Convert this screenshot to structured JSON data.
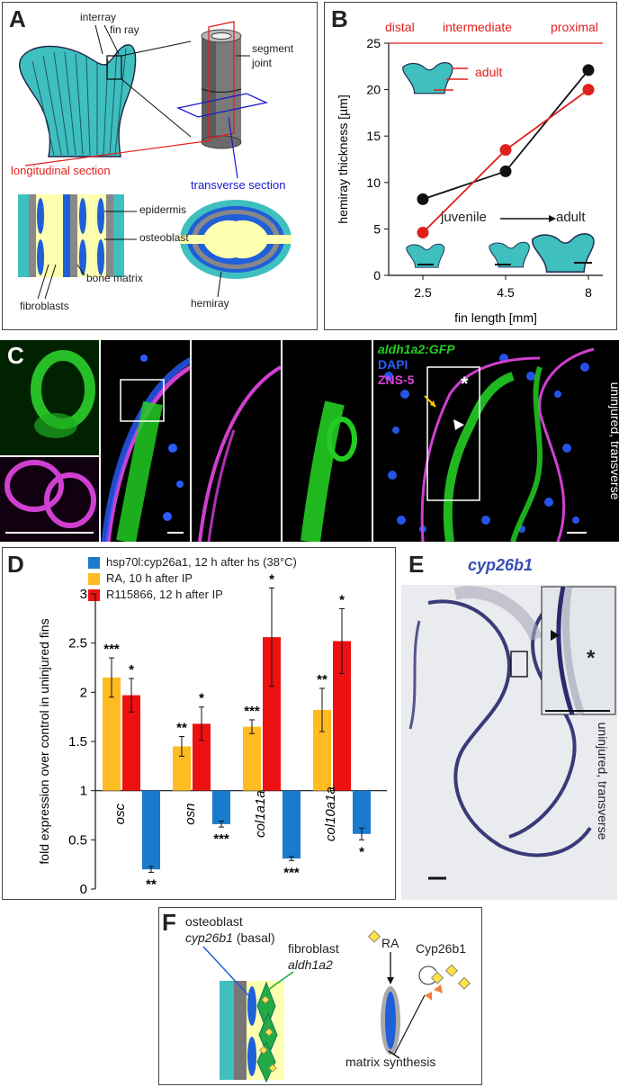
{
  "panelA": {
    "letter": "A",
    "interray": "interray",
    "fin_ray": "fin ray",
    "segment_joint": "segment\njoint",
    "longitudinal_section": "longitudinal section",
    "transverse_section": "transverse section",
    "epidermis": "epidermis",
    "osteoblast": "osteoblast",
    "bone_matrix": "bone matrix",
    "fibroblasts": "fibroblasts",
    "hemiray": "hemiray",
    "colors": {
      "fin": "#3fbfbf",
      "red": "#e0201c",
      "blue": "#1a1ad0",
      "matrix": "#ffffb0",
      "osteo": "#1f5fd8",
      "grey": "#888888"
    }
  },
  "panelB": {
    "letter": "B",
    "top_labels": [
      "distal",
      "intermediate",
      "proximal"
    ],
    "adult": "adult",
    "juvenile": "juvenile",
    "adult2": "adult",
    "chart_data": {
      "type": "line",
      "title": "",
      "xlabel": "fin length [mm]",
      "ylabel": "hemiray thickness [µm]",
      "categories": [
        "2.5",
        "4.5",
        "8"
      ],
      "ylim": [
        0,
        25
      ],
      "yticks": [
        0,
        5,
        10,
        15,
        20,
        25
      ],
      "series": [
        {
          "name": "",
          "color": "#111111",
          "values": [
            8.2,
            11.2,
            22.1
          ]
        },
        {
          "name": "",
          "color": "#e0201c",
          "values": [
            4.6,
            13.5,
            20.0
          ]
        }
      ]
    }
  },
  "panelC": {
    "letter": "C",
    "legend": [
      "aldh1a2:GFP",
      "DAPI",
      "ZNS-5"
    ],
    "legend_colors": [
      "#22cc22",
      "#2a5cff",
      "#e040e0"
    ],
    "side": "uninjured, transverse",
    "asterisk": "*"
  },
  "panelD": {
    "letter": "D",
    "legend": [
      {
        "label": "hsp70l:cyp26a1, 12 h after hs (38°C)",
        "color": "#1a7acc"
      },
      {
        "label": "RA, 10 h after IP",
        "color": "#ffbb22"
      },
      {
        "label": "R115866, 12 h after IP",
        "color": "#ee1111"
      }
    ],
    "chart_data": {
      "type": "bar",
      "title": "",
      "xlabel": "",
      "ylabel": "fold expression over control in uninjured fins",
      "categories": [
        "osc",
        "osn",
        "col1a1a",
        "col10a1a"
      ],
      "ylim": [
        0,
        3
      ],
      "baseline": 1,
      "yticks": [
        0,
        0.5,
        1,
        1.5,
        2,
        2.5,
        3
      ],
      "series": [
        {
          "name": "RA, 10 h after IP",
          "color": "#ffbb22",
          "values": [
            2.15,
            1.45,
            1.65,
            1.82
          ],
          "errors": [
            0.2,
            0.1,
            0.07,
            0.22
          ],
          "stars": [
            "***",
            "**",
            "***",
            "**"
          ]
        },
        {
          "name": "R115866, 12 h after IP",
          "color": "#ee1111",
          "values": [
            1.97,
            1.68,
            2.56,
            2.52
          ],
          "errors": [
            0.17,
            0.17,
            0.5,
            0.33
          ],
          "stars": [
            "*",
            "*",
            "*",
            "*"
          ]
        },
        {
          "name": "hsp70l:cyp26a1, 12 h after hs (38°C)",
          "color": "#1a7acc",
          "values": [
            0.2,
            0.66,
            0.31,
            0.56
          ],
          "errors": [
            0.03,
            0.03,
            0.02,
            0.06
          ],
          "stars": [
            "**",
            "***",
            "***",
            "*"
          ]
        }
      ]
    }
  },
  "panelE": {
    "letter": "E",
    "gene": "cyp26b1",
    "side": "uninjured, transverse",
    "asterisk": "*"
  },
  "panelF": {
    "letter": "F",
    "osteoblast": "osteoblast",
    "cyp26b1": "cyp26b1",
    "basal": "(basal)",
    "fibroblast": "fibroblast",
    "aldh1a2": "aldh1a2",
    "ra": "RA",
    "cyp26b1_protein": "Cyp26b1",
    "matrix_synthesis": "matrix synthesis"
  }
}
